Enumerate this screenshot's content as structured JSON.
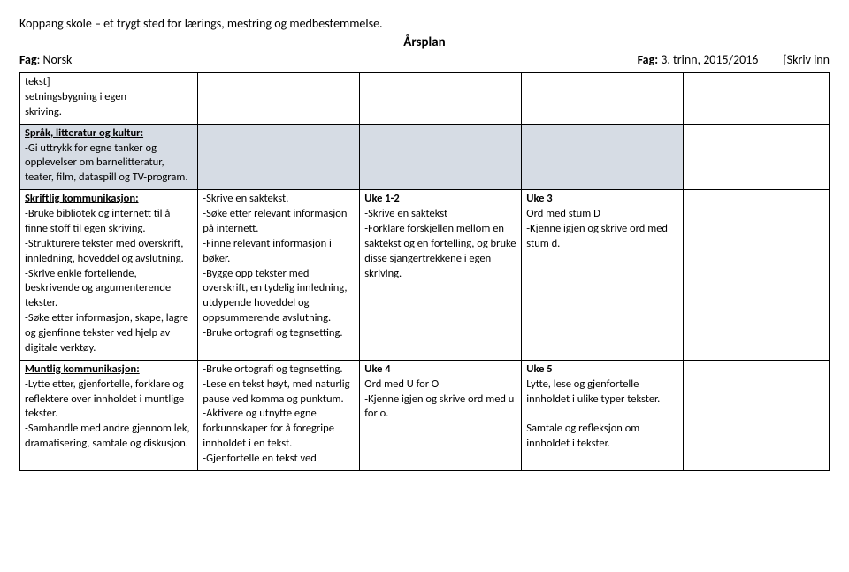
{
  "header": {
    "line1": "Koppang skole – et trygt sted for lærings, mestring og medbestemmelse.",
    "title": "Årsplan",
    "left_label": "Fag",
    "left_value": ": Norsk",
    "right_label": "Fag:",
    "right_value": " 3. trinn, 2015/2016",
    "right_extra": "[Skriv inn"
  },
  "row0": {
    "c1": "tekst]\nsetningsbygning i egen\nskriving.",
    "c2": "",
    "c3": "",
    "c4": "",
    "c5": ""
  },
  "row1": {
    "head": "Språk, litteratur og kultur:",
    "body": "-Gi uttrykk for egne tanker og opplevelser om barnelitteratur, teater, film, dataspill og TV-program."
  },
  "row2": {
    "c1head": "Skriftlig kommunikasjon:",
    "c1body": "-Bruke bibliotek og internett til å finne stoff til egen skriving.\n-Strukturere tekster med overskrift, innledning, hoveddel og avslutning.\n-Skrive enkle fortellende, beskrivende og argumenterende tekster.\n-Søke etter informasjon, skape, lagre og gjenfinne tekster ved hjelp av digitale verktøy.",
    "c2": "-Skrive en saktekst.\n-Søke etter relevant informasjon på internett.\n-Finne relevant informasjon i bøker.\n-Bygge opp tekster med overskrift, en tydelig innledning, utdypende hoveddel og oppsummerende avslutning.\n-Bruke ortografi og tegnsetting.",
    "c3head": "Uke 1-2",
    "c3body": "-Skrive en saktekst\n-Forklare forskjellen mellom en saktekst og en fortelling, og bruke disse sjangertrekkene i egen skriving.",
    "c4head": "Uke 3",
    "c4body": "Ord med stum D\n-Kjenne igjen og skrive ord med stum d."
  },
  "row3": {
    "c1head": "Muntlig kommunikasjon:",
    "c1body": "-Lytte etter, gjenfortelle, forklare og reflektere over innholdet i muntlige tekster.\n-Samhandle med andre gjennom lek, dramatisering, samtale og diskusjon.",
    "c2": "-Bruke ortografi og tegnsetting.\n-Lese en tekst høyt, med naturlig pause ved komma og punktum.\n-Aktivere og utnytte egne forkunnskaper for å foregripe innholdet i en tekst.\n-Gjenfortelle en tekst ved",
    "c3head": "Uke 4",
    "c3body": "Ord med U for O\n-Kjenne igjen og skrive ord med u for o.",
    "c4head": "Uke 5",
    "c4body": "Lytte, lese og gjenfortelle innholdet i ulike typer tekster.\n\nSamtale og refleksjon om innholdet i tekster."
  }
}
